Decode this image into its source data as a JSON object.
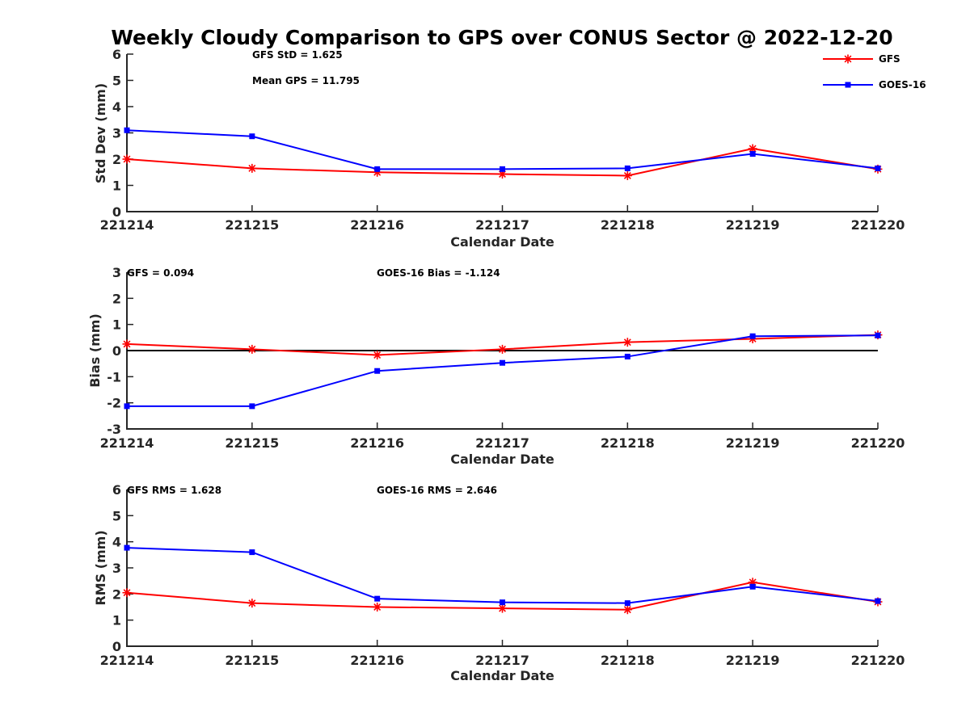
{
  "title": "Weekly Cloudy Comparison to GPS over CONUS Sector @ 2022-12-20",
  "legend": {
    "items": [
      {
        "label": "GFS",
        "color": "#ff0000",
        "marker": "asterisk"
      },
      {
        "label": "GOES-16",
        "color": "#0000ff",
        "marker": "square"
      }
    ]
  },
  "chart_data": [
    {
      "type": "line",
      "title": "Weekly Cloudy Comparison to GPS over CONUS Sector @ 2022-12-20",
      "categories": [
        "221214",
        "221215",
        "221216",
        "221217",
        "221218",
        "221219",
        "221220"
      ],
      "xlabel": "Calendar Date",
      "ylabel": "Std Dev (mm)",
      "ylim": [
        0,
        6
      ],
      "yticks": [
        "0",
        "1",
        "2",
        "3",
        "4",
        "5",
        "6"
      ],
      "zero_line": false,
      "annotations": [
        "GFS StD = 1.625",
        "Mean GPS = 11.795"
      ],
      "series": [
        {
          "name": "GFS",
          "color": "#ff0000",
          "marker": "asterisk",
          "values": [
            2.0,
            1.65,
            1.5,
            1.43,
            1.37,
            2.4,
            1.62
          ]
        },
        {
          "name": "GOES-16",
          "color": "#0000ff",
          "marker": "square",
          "values": [
            3.1,
            2.87,
            1.62,
            1.62,
            1.65,
            2.2,
            1.65
          ]
        }
      ]
    },
    {
      "type": "line",
      "categories": [
        "221214",
        "221215",
        "221216",
        "221217",
        "221218",
        "221219",
        "221220"
      ],
      "xlabel": "Calendar Date",
      "ylabel": "Bias (mm)",
      "ylim": [
        -3,
        3
      ],
      "yticks": [
        "-3",
        "-2",
        "-1",
        "0",
        "1",
        "2",
        "3"
      ],
      "zero_line": true,
      "annotations": [
        "GFS = 0.094",
        "GOES-16 Bias  = -1.124"
      ],
      "series": [
        {
          "name": "GFS",
          "color": "#ff0000",
          "marker": "asterisk",
          "values": [
            0.25,
            0.05,
            -0.17,
            0.05,
            0.32,
            0.45,
            0.6
          ]
        },
        {
          "name": "GOES-16",
          "color": "#0000ff",
          "marker": "square",
          "values": [
            -2.13,
            -2.13,
            -0.78,
            -0.47,
            -0.23,
            0.55,
            0.58
          ]
        }
      ]
    },
    {
      "type": "line",
      "categories": [
        "221214",
        "221215",
        "221216",
        "221217",
        "221218",
        "221219",
        "221220"
      ],
      "xlabel": "Calendar Date",
      "ylabel": "RMS (mm)",
      "ylim": [
        0,
        6
      ],
      "yticks": [
        "0",
        "1",
        "2",
        "3",
        "4",
        "5",
        "6"
      ],
      "zero_line": false,
      "annotations": [
        "GFS RMS = 1.628",
        "GOES-16 RMS = 2.646"
      ],
      "series": [
        {
          "name": "GFS",
          "color": "#ff0000",
          "marker": "asterisk",
          "values": [
            2.05,
            1.65,
            1.5,
            1.45,
            1.4,
            2.45,
            1.7
          ]
        },
        {
          "name": "GOES-16",
          "color": "#0000ff",
          "marker": "square",
          "values": [
            3.77,
            3.6,
            1.82,
            1.68,
            1.65,
            2.28,
            1.73
          ]
        }
      ]
    }
  ]
}
